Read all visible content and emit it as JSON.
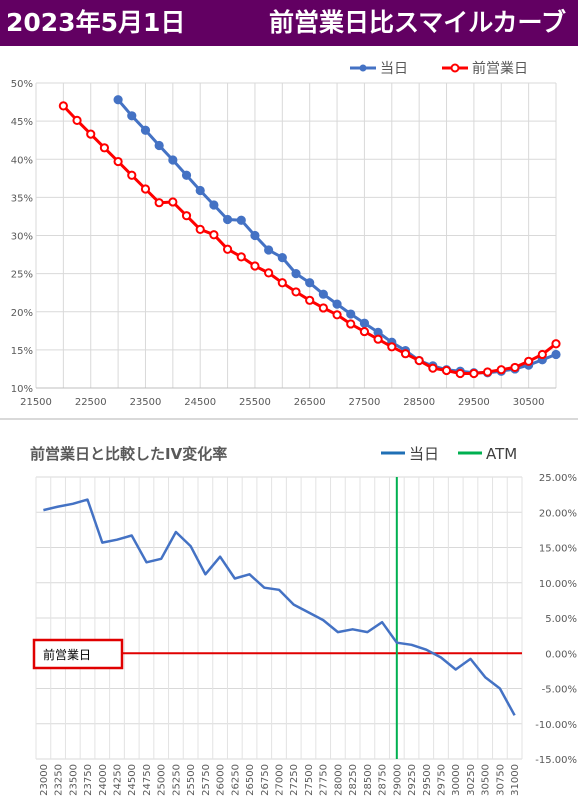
{
  "header": {
    "date": "2023年5月1日",
    "title": "前営業日比スマイルカーブ"
  },
  "colors": {
    "banner": "#620062",
    "today": "#4472c4",
    "prev_day": "#ff0000",
    "atm": "#00b050",
    "iv_change": "#4472c4",
    "baseline": "#e00000"
  },
  "chart_data": [
    {
      "type": "line",
      "title": "",
      "legend": [
        "当日",
        "前営業日"
      ],
      "legend_position": "top-right",
      "xlim": [
        21500,
        31000
      ],
      "ylim": [
        10,
        50
      ],
      "x_ticks": [
        "21500",
        "22500",
        "23500",
        "24500",
        "25500",
        "26500",
        "27500",
        "28500",
        "29500",
        "30500"
      ],
      "y_ticks": [
        "10%",
        "15%",
        "20%",
        "25%",
        "30%",
        "35%",
        "40%",
        "45%",
        "50%"
      ],
      "grid": true,
      "series": [
        {
          "name": "当日",
          "x": [
            23000,
            23250,
            23500,
            23750,
            24000,
            24250,
            24500,
            24750,
            25000,
            25250,
            25500,
            25750,
            26000,
            26250,
            26500,
            26750,
            27000,
            27250,
            27500,
            27750,
            28000,
            28250,
            28500,
            28750,
            29000,
            29250,
            29500,
            29750,
            30000,
            30250,
            30500,
            30750,
            31000
          ],
          "y": [
            47.8,
            45.7,
            43.8,
            41.8,
            39.9,
            37.9,
            35.9,
            34.0,
            32.1,
            32.0,
            30.0,
            28.1,
            27.1,
            25.0,
            23.8,
            22.3,
            21.0,
            19.7,
            18.5,
            17.3,
            16.0,
            14.9,
            13.6,
            12.9,
            12.4,
            12.2,
            12.0,
            12.0,
            12.2,
            12.5,
            13.0,
            13.7,
            14.4
          ]
        },
        {
          "name": "前営業日",
          "x": [
            22000,
            22250,
            22500,
            22750,
            23000,
            23250,
            23500,
            23750,
            24000,
            24250,
            24500,
            24750,
            25000,
            25250,
            25500,
            25750,
            26000,
            26250,
            26500,
            26750,
            27000,
            27250,
            27500,
            27750,
            28000,
            28250,
            28500,
            28750,
            29000,
            29250,
            29500,
            29750,
            30000,
            30250,
            30500,
            30750,
            31000
          ],
          "y": [
            47.0,
            45.1,
            43.3,
            41.5,
            39.7,
            37.9,
            36.1,
            34.3,
            34.4,
            32.6,
            30.8,
            30.1,
            28.2,
            27.2,
            26.0,
            25.1,
            23.8,
            22.6,
            21.5,
            20.5,
            19.6,
            18.4,
            17.4,
            16.4,
            15.4,
            14.5,
            13.6,
            12.6,
            12.3,
            11.9,
            11.9,
            12.1,
            12.4,
            12.7,
            13.5,
            14.4,
            15.8
          ]
        }
      ]
    },
    {
      "type": "line",
      "title": "前営業日と比較したIV変化率",
      "legend": [
        "当日",
        "ATM"
      ],
      "legend_position": "top-right",
      "annotation": "前営業日",
      "atm_strike": 29000,
      "ylim": [
        -15,
        25
      ],
      "y_ticks": [
        "25.00%",
        "20.00%",
        "15.00%",
        "10.00%",
        "5.00%",
        "0.00%",
        "-5.00%",
        "-10.00%",
        "-15.00%"
      ],
      "grid": true,
      "categories": [
        "23000",
        "23250",
        "23500",
        "23750",
        "24000",
        "24250",
        "24500",
        "24750",
        "25000",
        "25250",
        "25500",
        "25750",
        "26000",
        "26250",
        "26500",
        "26750",
        "27000",
        "27250",
        "27500",
        "27750",
        "28000",
        "28250",
        "28500",
        "28750",
        "29000",
        "29250",
        "29500",
        "29750",
        "30000",
        "30250",
        "30500",
        "30750",
        "31000"
      ],
      "series": [
        {
          "name": "当日",
          "values": [
            20.3,
            20.8,
            21.2,
            21.8,
            15.7,
            16.1,
            16.7,
            12.9,
            13.4,
            17.2,
            15.2,
            11.2,
            13.7,
            10.6,
            11.2,
            9.3,
            9.0,
            6.9,
            5.8,
            4.7,
            3.0,
            3.4,
            3.0,
            4.4,
            1.5,
            1.2,
            0.5,
            -0.6,
            -2.3,
            -0.8,
            -3.4,
            -5.0,
            -8.8
          ]
        }
      ]
    }
  ]
}
